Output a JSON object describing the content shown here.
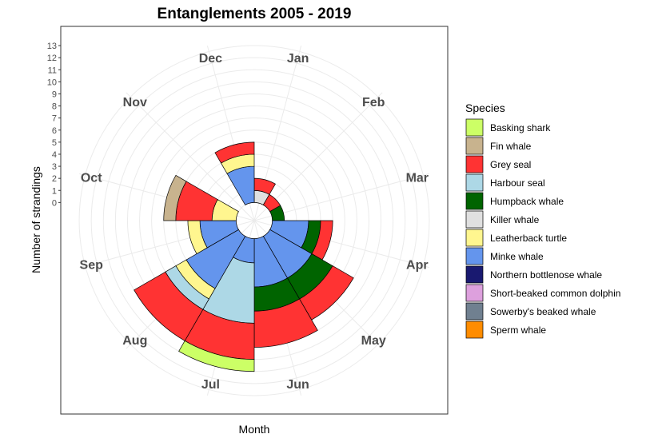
{
  "chart_data": {
    "type": "bar",
    "subtype": "stacked-polar",
    "title": "Entanglements 2005 - 2019",
    "xlabel": "Month",
    "ylabel": "Number of strandings",
    "categories": [
      "Jan",
      "Feb",
      "Mar",
      "Apr",
      "May",
      "Jun",
      "Jul",
      "Aug",
      "Sep",
      "Oct",
      "Nov",
      "Dec"
    ],
    "y_ticks": [
      "0",
      "1",
      "2",
      "3",
      "4",
      "5",
      "6",
      "7",
      "8",
      "9",
      "10",
      "11",
      "12",
      "13"
    ],
    "ylim": [
      -1.5,
      13.5
    ],
    "grid": true,
    "legend_title": "Species",
    "legend_position": "right",
    "series": [
      {
        "name": "Basking shark",
        "color": "#CCFF66",
        "values": [
          0,
          0,
          0,
          0,
          0,
          0,
          1,
          0,
          0,
          0,
          0,
          0
        ]
      },
      {
        "name": "Fin whale",
        "color": "#C8B38E",
        "values": [
          0,
          0,
          0,
          0,
          0,
          0,
          0,
          0,
          0,
          1,
          0,
          0
        ]
      },
      {
        "name": "Grey seal",
        "color": "#FF3333",
        "values": [
          1,
          1,
          0,
          1,
          2,
          3,
          3,
          3,
          0,
          3,
          0,
          1
        ]
      },
      {
        "name": "Harbour seal",
        "color": "#ADD8E6",
        "values": [
          0,
          0,
          0,
          0,
          0,
          0,
          5,
          1,
          0,
          0,
          0,
          0
        ]
      },
      {
        "name": "Humpback whale",
        "color": "#006400",
        "values": [
          0,
          0,
          1,
          1,
          2,
          2,
          0,
          0,
          0,
          0,
          0,
          0
        ]
      },
      {
        "name": "Killer whale",
        "color": "#E0E0E0",
        "values": [
          1,
          0,
          0,
          0,
          0,
          0,
          0,
          0,
          0,
          0,
          0,
          0
        ]
      },
      {
        "name": "Leatherback turtle",
        "color": "#FFF68F",
        "values": [
          0,
          0,
          0,
          0,
          0,
          0,
          0,
          1,
          1,
          2,
          0,
          1
        ]
      },
      {
        "name": "Minke whale",
        "color": "#6495ED",
        "values": [
          0,
          0,
          0,
          3,
          4,
          4,
          2,
          5,
          3,
          0,
          0,
          3
        ]
      },
      {
        "name": "Northern bottlenose whale",
        "color": "#191970",
        "values": [
          0,
          0,
          0,
          0,
          0,
          0,
          0,
          0,
          0,
          0,
          0,
          0
        ]
      },
      {
        "name": "Short-beaked common dolphin",
        "color": "#DDA0DD",
        "values": [
          0,
          0,
          0,
          0,
          0,
          0,
          0,
          0,
          0,
          0,
          0,
          0
        ]
      },
      {
        "name": "Sowerby's beaked whale",
        "color": "#708090",
        "values": [
          0,
          0,
          0,
          0,
          0,
          0,
          0,
          0,
          0,
          0,
          0,
          0
        ]
      },
      {
        "name": "Sperm whale",
        "color": "#FF8C00",
        "values": [
          0,
          0,
          0,
          0,
          0,
          0,
          0,
          0,
          0,
          0,
          0,
          0
        ]
      }
    ]
  }
}
